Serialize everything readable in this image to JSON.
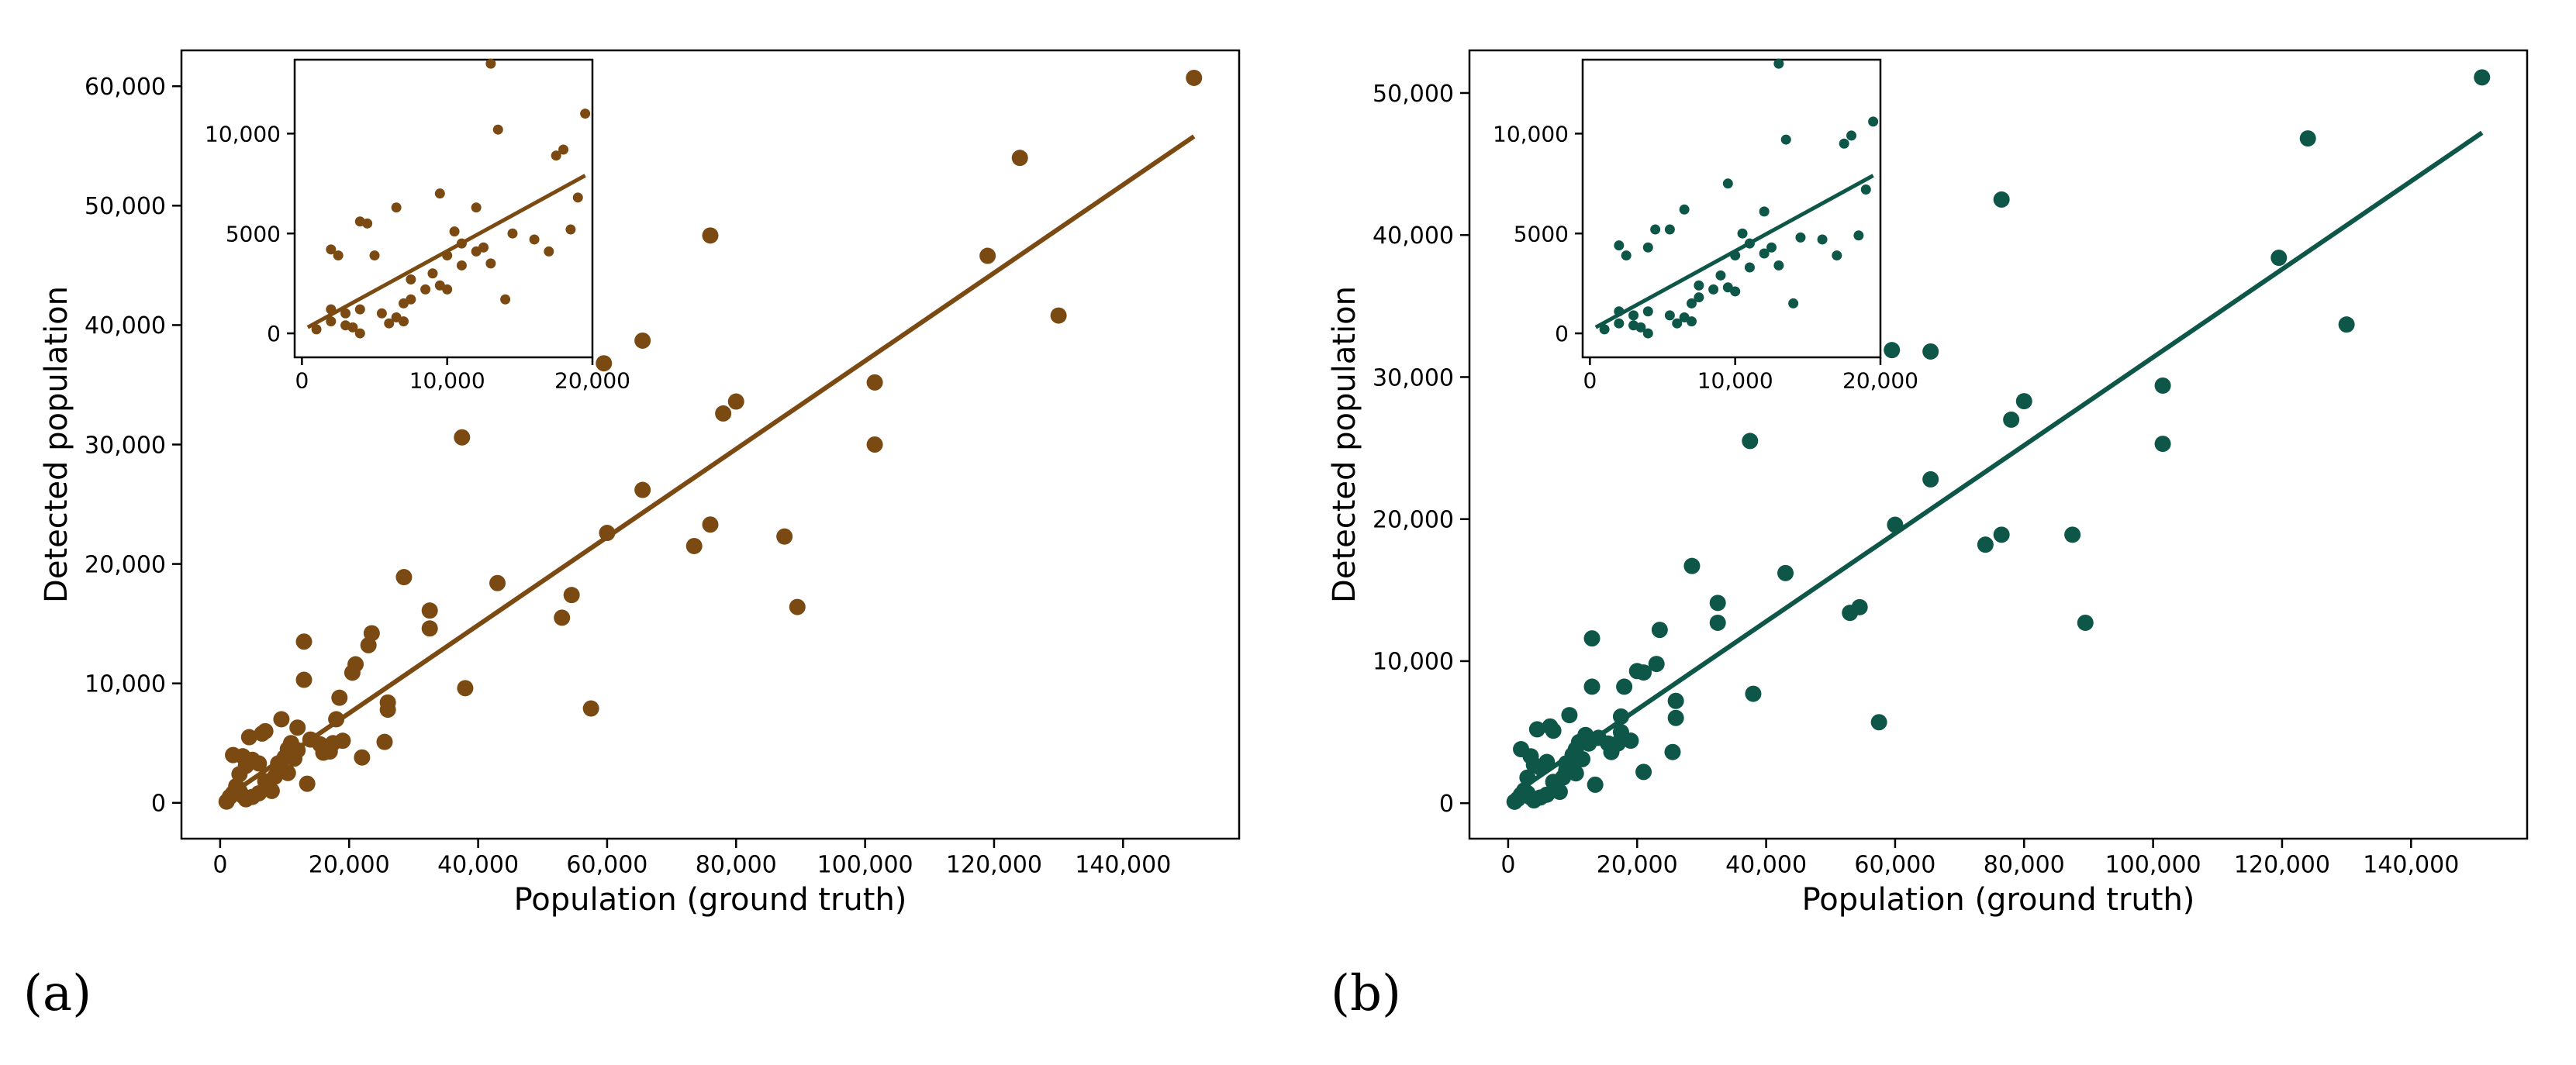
{
  "figure": {
    "panel_a_label": "(a)",
    "panel_b_label": "(b)"
  },
  "chart_data": [
    {
      "id": "a",
      "type": "scatter",
      "color": "#7b4a12",
      "xlabel": "Population (ground truth)",
      "ylabel": "Detected population",
      "xlim": [
        -6000,
        158000
      ],
      "ylim": [
        -3000,
        63000
      ],
      "xticks": [
        0,
        20000,
        40000,
        60000,
        80000,
        100000,
        120000,
        140000
      ],
      "xtick_labels": [
        "0",
        "20,000",
        "40,000",
        "60,000",
        "80,000",
        "100,000",
        "120,000",
        "140,000"
      ],
      "yticks": [
        0,
        10000,
        20000,
        30000,
        40000,
        50000,
        60000
      ],
      "ytick_labels": [
        "0",
        "10,000",
        "20,000",
        "30,000",
        "40,000",
        "50,000",
        "60,000"
      ],
      "fit_line": {
        "x": [
          1000,
          151000
        ],
        "y": [
          500,
          55800
        ]
      },
      "points": [
        [
          151000,
          60700
        ],
        [
          124000,
          54000
        ],
        [
          119000,
          45800
        ],
        [
          130000,
          40800
        ],
        [
          101500,
          35200
        ],
        [
          101500,
          30000
        ],
        [
          76000,
          47500
        ],
        [
          80000,
          33600
        ],
        [
          78000,
          32600
        ],
        [
          76000,
          23300
        ],
        [
          73500,
          21500
        ],
        [
          87500,
          22300
        ],
        [
          89500,
          16400
        ],
        [
          65500,
          38700
        ],
        [
          65500,
          26200
        ],
        [
          59500,
          36800
        ],
        [
          60000,
          22600
        ],
        [
          57500,
          7900
        ],
        [
          54500,
          17400
        ],
        [
          53000,
          15500
        ],
        [
          43000,
          18400
        ],
        [
          37500,
          30600
        ],
        [
          38000,
          9600
        ],
        [
          32500,
          16100
        ],
        [
          32500,
          14600
        ],
        [
          28500,
          18900
        ],
        [
          26000,
          8400
        ],
        [
          26000,
          7800
        ],
        [
          25500,
          5100
        ],
        [
          23500,
          14200
        ],
        [
          23000,
          13200
        ],
        [
          22000,
          3800
        ],
        [
          21000,
          11600
        ],
        [
          20500,
          10900
        ],
        [
          18500,
          8800
        ],
        [
          18000,
          7000
        ],
        [
          17500,
          5000
        ],
        [
          17000,
          4300
        ],
        [
          13000,
          13500
        ],
        [
          13000,
          10300
        ],
        [
          12000,
          6300
        ],
        [
          12000,
          4400
        ],
        [
          13500,
          1600
        ],
        [
          11000,
          5000
        ],
        [
          10500,
          4500
        ],
        [
          10000,
          3800
        ],
        [
          9500,
          7000
        ],
        [
          9000,
          2600
        ],
        [
          9500,
          2900
        ],
        [
          8500,
          2200
        ],
        [
          7500,
          1300
        ],
        [
          7000,
          6000
        ],
        [
          6500,
          5800
        ],
        [
          6000,
          3300
        ],
        [
          5000,
          3600
        ],
        [
          4500,
          5500
        ],
        [
          4000,
          3100
        ],
        [
          3500,
          3900
        ],
        [
          3000,
          2400
        ],
        [
          2500,
          1400
        ],
        [
          2000,
          4000
        ],
        [
          1500,
          500
        ],
        [
          1000,
          100
        ],
        [
          2000,
          800
        ],
        [
          3000,
          1000
        ],
        [
          4000,
          300
        ],
        [
          5000,
          500
        ],
        [
          6000,
          800
        ],
        [
          7000,
          1800
        ],
        [
          8000,
          1000
        ],
        [
          3500,
          600
        ],
        [
          14000,
          5300
        ],
        [
          15500,
          4900
        ],
        [
          19000,
          5200
        ],
        [
          10500,
          2500
        ],
        [
          11500,
          3700
        ],
        [
          16000,
          4200
        ],
        [
          9000,
          3300
        ]
      ],
      "inset": {
        "xlim": [
          -500,
          20000
        ],
        "ylim": [
          -1200,
          13700
        ],
        "xticks": [
          0,
          10000,
          20000
        ],
        "xtick_labels": [
          "0",
          "10,000",
          "20,000"
        ],
        "yticks": [
          0,
          5000,
          10000
        ],
        "ytick_labels": [
          "0",
          "5000",
          "10,000"
        ],
        "fit_line": {
          "x": [
            400,
            19500
          ],
          "y": [
            300,
            7900
          ]
        },
        "points": [
          [
            13000,
            13500
          ],
          [
            19500,
            11000
          ],
          [
            13500,
            10200
          ],
          [
            18000,
            9200
          ],
          [
            17500,
            8900
          ],
          [
            9500,
            7000
          ],
          [
            19000,
            6800
          ],
          [
            12000,
            6300
          ],
          [
            6500,
            6300
          ],
          [
            4000,
            5600
          ],
          [
            4500,
            5500
          ],
          [
            2000,
            4200
          ],
          [
            2500,
            3900
          ],
          [
            5000,
            3900
          ],
          [
            18500,
            5200
          ],
          [
            10500,
            5100
          ],
          [
            11000,
            4500
          ],
          [
            12500,
            4300
          ],
          [
            16000,
            4700
          ],
          [
            14500,
            5000
          ],
          [
            10000,
            3900
          ],
          [
            9000,
            3000
          ],
          [
            7500,
            2700
          ],
          [
            8500,
            2200
          ],
          [
            7000,
            1500
          ],
          [
            7500,
            1700
          ],
          [
            9500,
            2400
          ],
          [
            13000,
            3500
          ],
          [
            17000,
            4100
          ],
          [
            14000,
            1700
          ],
          [
            10000,
            2200
          ],
          [
            3000,
            1000
          ],
          [
            4000,
            1200
          ],
          [
            2000,
            600
          ],
          [
            1000,
            200
          ],
          [
            3500,
            300
          ],
          [
            4000,
            0
          ],
          [
            3000,
            400
          ],
          [
            5500,
            1000
          ],
          [
            6000,
            500
          ],
          [
            6500,
            800
          ],
          [
            7000,
            600
          ],
          [
            2000,
            1200
          ],
          [
            11000,
            3400
          ],
          [
            12000,
            4100
          ]
        ]
      }
    },
    {
      "id": "b",
      "type": "scatter",
      "color": "#0d5648",
      "xlabel": "Population (ground truth)",
      "ylabel": "Detected population",
      "xlim": [
        -6000,
        158000
      ],
      "ylim": [
        -2500,
        53000
      ],
      "xticks": [
        0,
        20000,
        40000,
        60000,
        80000,
        100000,
        120000,
        140000
      ],
      "xtick_labels": [
        "0",
        "20,000",
        "40,000",
        "60,000",
        "80,000",
        "100,000",
        "120,000",
        "140,000"
      ],
      "yticks": [
        0,
        10000,
        20000,
        30000,
        40000,
        50000
      ],
      "ytick_labels": [
        "0",
        "10,000",
        "20,000",
        "30,000",
        "40,000",
        "50,000"
      ],
      "fit_line": {
        "x": [
          1000,
          151000
        ],
        "y": [
          700,
          47200
        ]
      },
      "points": [
        [
          151000,
          51100
        ],
        [
          124000,
          46800
        ],
        [
          119500,
          38400
        ],
        [
          130000,
          33700
        ],
        [
          101500,
          29400
        ],
        [
          101500,
          25300
        ],
        [
          76500,
          42500
        ],
        [
          80000,
          28300
        ],
        [
          78000,
          27000
        ],
        [
          76500,
          18900
        ],
        [
          74000,
          18200
        ],
        [
          87500,
          18900
        ],
        [
          89500,
          12700
        ],
        [
          65500,
          31800
        ],
        [
          65500,
          22800
        ],
        [
          59500,
          31900
        ],
        [
          60000,
          19600
        ],
        [
          57500,
          5700
        ],
        [
          54500,
          13800
        ],
        [
          53000,
          13400
        ],
        [
          43000,
          16200
        ],
        [
          37500,
          25500
        ],
        [
          38000,
          7700
        ],
        [
          32500,
          14100
        ],
        [
          32500,
          12700
        ],
        [
          28500,
          16700
        ],
        [
          26000,
          7200
        ],
        [
          26000,
          6000
        ],
        [
          25500,
          3600
        ],
        [
          23500,
          12200
        ],
        [
          23000,
          9800
        ],
        [
          21000,
          2200
        ],
        [
          21000,
          9200
        ],
        [
          20000,
          9300
        ],
        [
          18000,
          8200
        ],
        [
          17500,
          6100
        ],
        [
          17500,
          5000
        ],
        [
          17000,
          4200
        ],
        [
          13000,
          11600
        ],
        [
          13000,
          8200
        ],
        [
          12000,
          4800
        ],
        [
          12500,
          4200
        ],
        [
          13500,
          1300
        ],
        [
          11000,
          4300
        ],
        [
          10500,
          3800
        ],
        [
          10000,
          3400
        ],
        [
          9500,
          6200
        ],
        [
          9000,
          2300
        ],
        [
          9500,
          2600
        ],
        [
          8500,
          1800
        ],
        [
          7500,
          900
        ],
        [
          7000,
          5100
        ],
        [
          6500,
          5400
        ],
        [
          6000,
          2900
        ],
        [
          5000,
          2500
        ],
        [
          4500,
          5200
        ],
        [
          4000,
          2700
        ],
        [
          3500,
          3300
        ],
        [
          3000,
          1800
        ],
        [
          2500,
          900
        ],
        [
          2000,
          3800
        ],
        [
          1500,
          300
        ],
        [
          1000,
          100
        ],
        [
          2000,
          600
        ],
        [
          3000,
          700
        ],
        [
          4000,
          200
        ],
        [
          5000,
          400
        ],
        [
          6000,
          600
        ],
        [
          7000,
          1500
        ],
        [
          8000,
          800
        ],
        [
          3500,
          400
        ],
        [
          14000,
          4600
        ],
        [
          15500,
          4200
        ],
        [
          19000,
          4400
        ],
        [
          10500,
          2100
        ],
        [
          11500,
          3100
        ],
        [
          16000,
          3600
        ],
        [
          9000,
          2800
        ]
      ],
      "inset": {
        "xlim": [
          -500,
          20000
        ],
        "ylim": [
          -1200,
          13700
        ],
        "xticks": [
          0,
          10000,
          20000
        ],
        "xtick_labels": [
          "0",
          "10,000",
          "20,000"
        ],
        "yticks": [
          0,
          5000,
          10000
        ],
        "ytick_labels": [
          "0",
          "5000",
          "10,000"
        ],
        "fit_line": {
          "x": [
            400,
            19500
          ],
          "y": [
            300,
            7900
          ]
        },
        "points": [
          [
            13000,
            13500
          ],
          [
            19500,
            10600
          ],
          [
            18000,
            9900
          ],
          [
            17500,
            9500
          ],
          [
            13500,
            9700
          ],
          [
            9500,
            7500
          ],
          [
            19000,
            7200
          ],
          [
            12000,
            6100
          ],
          [
            6500,
            6200
          ],
          [
            4000,
            4300
          ],
          [
            4500,
            5200
          ],
          [
            2000,
            4400
          ],
          [
            2500,
            3900
          ],
          [
            5500,
            5200
          ],
          [
            18500,
            4900
          ],
          [
            10500,
            5000
          ],
          [
            11000,
            4500
          ],
          [
            12500,
            4300
          ],
          [
            16000,
            4700
          ],
          [
            14500,
            4800
          ],
          [
            10000,
            3900
          ],
          [
            9000,
            2900
          ],
          [
            7500,
            2400
          ],
          [
            8500,
            2200
          ],
          [
            7000,
            1500
          ],
          [
            7500,
            1800
          ],
          [
            9500,
            2300
          ],
          [
            13000,
            3400
          ],
          [
            17000,
            3900
          ],
          [
            14000,
            1500
          ],
          [
            10000,
            2100
          ],
          [
            3000,
            900
          ],
          [
            4000,
            1100
          ],
          [
            2000,
            500
          ],
          [
            1000,
            200
          ],
          [
            3500,
            300
          ],
          [
            4000,
            0
          ],
          [
            3000,
            400
          ],
          [
            5500,
            900
          ],
          [
            6000,
            500
          ],
          [
            6500,
            800
          ],
          [
            7000,
            600
          ],
          [
            2000,
            1100
          ],
          [
            11000,
            3300
          ],
          [
            12000,
            4000
          ]
        ]
      }
    }
  ]
}
